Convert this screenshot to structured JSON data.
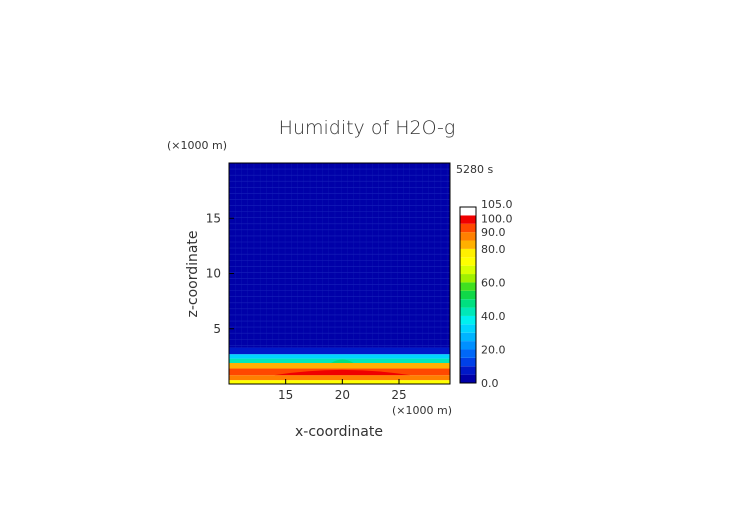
{
  "chart_data": {
    "type": "heatmap",
    "title": "Humidity of H2O-g",
    "xlabel": "x-coordinate",
    "ylabel": "z-coordinate",
    "x_unit": "(×1000 m)",
    "y_unit": "(×1000 m)",
    "time_label": "5280 s",
    "xlim": [
      10,
      29.5
    ],
    "ylim": [
      0,
      20
    ],
    "x_ticks": [
      15,
      20,
      25
    ],
    "y_ticks": [
      5,
      10,
      15
    ],
    "grid": false,
    "colorbar": {
      "ticks": [
        "0.0",
        "20.0",
        "40.0",
        "60.0",
        "80.0",
        "90.0",
        "100.0",
        "105.0"
      ],
      "tick_values": [
        0,
        20,
        40,
        60,
        80,
        90,
        100,
        105
      ],
      "min": 0,
      "max": 105,
      "levels": [
        {
          "from": 0,
          "to": 5,
          "color": "#0000a8"
        },
        {
          "from": 5,
          "to": 10,
          "color": "#0018c8"
        },
        {
          "from": 10,
          "to": 15,
          "color": "#0040e8"
        },
        {
          "from": 15,
          "to": 20,
          "color": "#0068f8"
        },
        {
          "from": 20,
          "to": 25,
          "color": "#0090ff"
        },
        {
          "from": 25,
          "to": 30,
          "color": "#00b4ff"
        },
        {
          "from": 30,
          "to": 35,
          "color": "#00d4ff"
        },
        {
          "from": 35,
          "to": 40,
          "color": "#00f0f0"
        },
        {
          "from": 40,
          "to": 45,
          "color": "#00e8b8"
        },
        {
          "from": 45,
          "to": 50,
          "color": "#00e080"
        },
        {
          "from": 50,
          "to": 55,
          "color": "#10d848"
        },
        {
          "from": 55,
          "to": 60,
          "color": "#40e020"
        },
        {
          "from": 60,
          "to": 65,
          "color": "#a0f000"
        },
        {
          "from": 65,
          "to": 70,
          "color": "#d8ff00"
        },
        {
          "from": 70,
          "to": 75,
          "color": "#ffff00"
        },
        {
          "from": 75,
          "to": 80,
          "color": "#fff000"
        },
        {
          "from": 80,
          "to": 85,
          "color": "#ffb000"
        },
        {
          "from": 85,
          "to": 90,
          "color": "#ff8000"
        },
        {
          "from": 90,
          "to": 95,
          "color": "#ff4800"
        },
        {
          "from": 95,
          "to": 100,
          "color": "#f00000"
        },
        {
          "from": 100,
          "to": 105,
          "color": "#ffffff"
        }
      ]
    },
    "field_bands": [
      {
        "z_from": 0.0,
        "z_to": 0.35,
        "value": 72,
        "color": "#ffff00"
      },
      {
        "z_from": 0.35,
        "z_to": 0.8,
        "value": 90,
        "color": "#ff8000"
      },
      {
        "z_from": 0.8,
        "z_to": 1.4,
        "value": 92,
        "color": "#ff4800"
      },
      {
        "z_from": 1.4,
        "z_to": 1.9,
        "value": 82,
        "color": "#ffb000"
      },
      {
        "z_from": 1.9,
        "z_to": 2.3,
        "value": 42,
        "color": "#00e8b8"
      },
      {
        "z_from": 2.3,
        "z_to": 2.7,
        "value": 30,
        "color": "#00d4ff"
      },
      {
        "z_from": 2.7,
        "z_to": 3.3,
        "value": 10,
        "color": "#0018c8"
      },
      {
        "z_from": 3.3,
        "z_to": 20.0,
        "value": 3,
        "color": "#0000a8"
      }
    ],
    "field_features": [
      {
        "x_from": 14,
        "x_to": 26,
        "z_from": 0.8,
        "z_to": 1.4,
        "value": 97,
        "color": "#f00000"
      },
      {
        "x_from": 19,
        "x_to": 21,
        "z_from": 1.9,
        "z_to": 2.3,
        "value": 50,
        "color": "#00e080"
      }
    ]
  }
}
